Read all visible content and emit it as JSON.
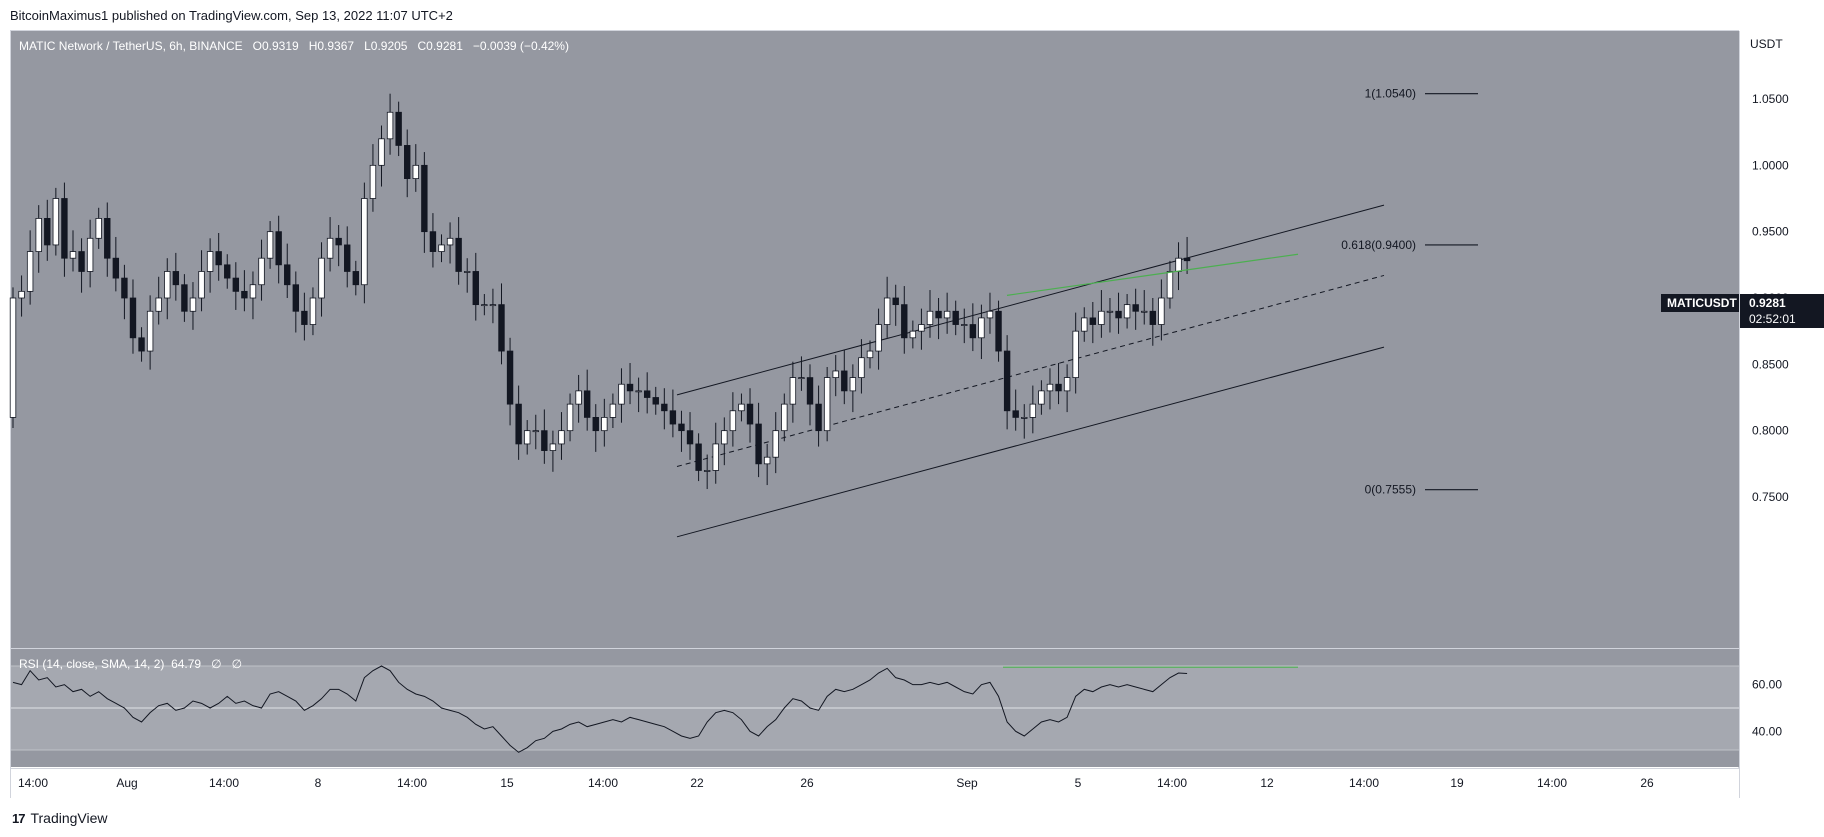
{
  "header": {
    "author": "BitcoinMaximus1",
    "published_text": "published on TradingView.com, Sep 13, 2022 11:07 UTC+2"
  },
  "symbol_legend": {
    "title": "MATIC Network / TetherUS, 6h, BINANCE",
    "o_label": "O",
    "o": "0.9319",
    "h_label": "H",
    "h": "0.9367",
    "l_label": "L",
    "l": "0.9205",
    "c_label": "C",
    "c": "0.9281",
    "change": "−0.0039 (−0.42%)"
  },
  "price_axis": {
    "currency": "USDT",
    "ticks": [
      "1.0500",
      "1.0000",
      "0.9500",
      "0.9000",
      "0.8500",
      "0.8000",
      "0.7500"
    ],
    "last_symbol": "MATICUSDT",
    "last_price": "0.9281",
    "countdown": "02:52:01"
  },
  "fib": {
    "levels": [
      {
        "label": "1(1.0540)",
        "value": 1.054
      },
      {
        "label": "0.618(0.9400)",
        "value": 0.94
      },
      {
        "label": "0(0.7555)",
        "value": 0.7555
      }
    ]
  },
  "rsi": {
    "legend": "RSI (14, close, SMA, 14, 2)",
    "value": "64.79",
    "extra1": "∅",
    "extra2": "∅",
    "ticks": [
      "60.00",
      "40.00"
    ]
  },
  "time_axis": {
    "labels": [
      "14:00",
      "Aug",
      "14:00",
      "8",
      "14:00",
      "15",
      "14:00",
      "22",
      "26",
      "Sep",
      "5",
      "14:00",
      "12",
      "14:00",
      "19",
      "14:00",
      "26"
    ]
  },
  "footer": {
    "brand": "TradingView",
    "logo": "17"
  },
  "colors": {
    "panel_bg": "#9598a1",
    "rsi_band": "#a5a8b0",
    "up_candle": "#ffffff",
    "down_candle": "#131722",
    "divergence": "#4caf50",
    "axis_bg": "#ffffff"
  },
  "chart_data": [
    {
      "type": "candlestick",
      "title": "MATIC Network / TetherUS, 6h, BINANCE",
      "ylabel": "USDT",
      "ylim": [
        0.72,
        1.08
      ],
      "x_labels": [
        "14:00",
        "Aug",
        "14:00",
        "8",
        "14:00",
        "15",
        "14:00",
        "22",
        "26",
        "Sep",
        "5",
        "14:00",
        "12",
        "14:00",
        "19",
        "14:00",
        "26"
      ],
      "close_series": [
        0.9,
        0.905,
        0.935,
        0.96,
        0.94,
        0.975,
        0.93,
        0.935,
        0.92,
        0.945,
        0.96,
        0.93,
        0.915,
        0.9,
        0.87,
        0.86,
        0.89,
        0.9,
        0.92,
        0.91,
        0.89,
        0.9,
        0.92,
        0.935,
        0.925,
        0.915,
        0.905,
        0.9,
        0.91,
        0.93,
        0.95,
        0.925,
        0.91,
        0.89,
        0.88,
        0.9,
        0.93,
        0.945,
        0.94,
        0.92,
        0.91,
        0.975,
        1.0,
        1.02,
        1.04,
        1.015,
        0.99,
        1.0,
        0.95,
        0.935,
        0.94,
        0.945,
        0.92,
        0.92,
        0.895,
        0.895,
        0.895,
        0.86,
        0.82,
        0.79,
        0.8,
        0.8,
        0.785,
        0.79,
        0.8,
        0.82,
        0.83,
        0.81,
        0.8,
        0.81,
        0.82,
        0.835,
        0.83,
        0.83,
        0.825,
        0.82,
        0.815,
        0.805,
        0.8,
        0.79,
        0.77,
        0.77,
        0.79,
        0.8,
        0.815,
        0.82,
        0.805,
        0.775,
        0.78,
        0.8,
        0.82,
        0.84,
        0.84,
        0.82,
        0.8,
        0.84,
        0.845,
        0.83,
        0.84,
        0.855,
        0.86,
        0.88,
        0.9,
        0.895,
        0.87,
        0.875,
        0.88,
        0.89,
        0.885,
        0.89,
        0.88,
        0.88,
        0.87,
        0.885,
        0.89,
        0.86,
        0.815,
        0.81,
        0.81,
        0.82,
        0.83,
        0.835,
        0.83,
        0.84,
        0.875,
        0.885,
        0.88,
        0.89,
        0.89,
        0.885,
        0.895,
        0.89,
        0.89,
        0.88,
        0.9,
        0.92,
        0.93,
        0.9281
      ],
      "annotations": [
        "1(1.0540)",
        "0.618(0.9400)",
        "0(0.7555)"
      ]
    },
    {
      "type": "line",
      "title": "RSI (14, close, SMA, 14, 2)",
      "ylim": [
        26,
        72
      ],
      "bands": [
        32,
        68
      ],
      "midline": 50,
      "values": [
        61,
        60,
        66,
        62,
        63,
        59,
        60,
        57,
        58,
        55,
        57,
        54,
        52,
        50,
        46,
        44,
        48,
        51,
        52,
        49,
        50,
        53,
        52,
        50,
        52,
        55,
        52,
        53,
        51,
        50,
        56,
        57,
        55,
        53,
        49,
        51,
        54,
        58,
        58,
        56,
        53,
        63,
        66,
        68,
        66,
        61,
        58,
        56,
        55,
        53,
        50,
        49,
        48,
        46,
        43,
        41,
        42,
        38,
        34,
        31,
        33,
        36,
        37,
        40,
        41,
        43,
        44,
        42,
        43,
        44,
        45,
        44,
        46,
        45,
        44,
        43,
        42,
        40,
        38,
        37,
        38,
        44,
        48,
        49,
        48,
        45,
        40,
        38,
        42,
        45,
        50,
        54,
        53,
        50,
        49,
        55,
        58,
        57,
        58,
        60,
        62,
        65,
        67,
        63,
        62,
        60,
        60,
        61,
        60,
        61,
        59,
        57,
        56,
        60,
        61,
        55,
        44,
        40,
        38,
        41,
        44,
        45,
        44,
        46,
        55,
        58,
        57,
        59,
        60,
        59,
        60,
        59,
        58,
        57,
        60,
        63,
        65,
        64.79
      ],
      "annotations": [
        "64.79",
        "60.00",
        "40.00"
      ]
    }
  ]
}
